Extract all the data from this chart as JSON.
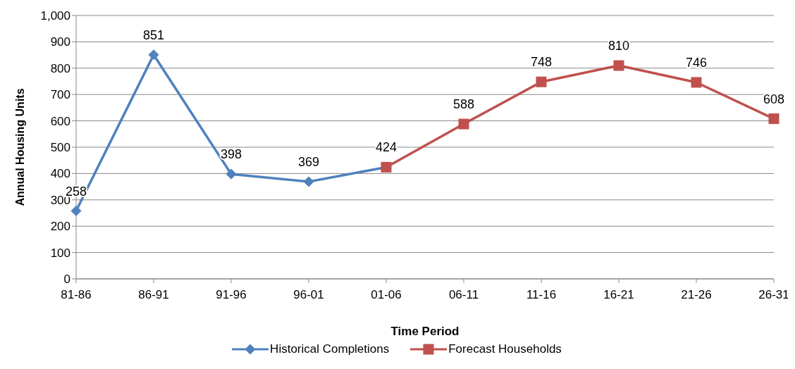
{
  "chart_data": {
    "type": "line",
    "xlabel": "Time Period",
    "ylabel": "Annual Housing Units",
    "categories": [
      "81-86",
      "86-91",
      "91-96",
      "96-01",
      "01-06",
      "06-11",
      "11-16",
      "16-21",
      "21-26",
      "26-31"
    ],
    "series": [
      {
        "name": "Historical Completions",
        "color": "#4f81bd",
        "marker": "diamond",
        "values": [
          258,
          851,
          398,
          369,
          424,
          null,
          null,
          null,
          null,
          null
        ],
        "value_labels": [
          "258",
          "851",
          "398",
          "369",
          null,
          null,
          null,
          null,
          null,
          null
        ]
      },
      {
        "name": "Forecast Households",
        "color": "#c0504d",
        "marker": "square",
        "values": [
          null,
          null,
          null,
          null,
          424,
          588,
          748,
          810,
          746,
          608
        ],
        "value_labels": [
          null,
          null,
          null,
          null,
          "424",
          "588",
          "748",
          "810",
          "746",
          "608"
        ]
      }
    ],
    "ylim": [
      0,
      1000
    ],
    "yticks": [
      0,
      100,
      200,
      300,
      400,
      500,
      600,
      700,
      800,
      900,
      {
        "value": 1000,
        "label": "1,000"
      }
    ],
    "grid": "y",
    "legend": "bottom"
  }
}
